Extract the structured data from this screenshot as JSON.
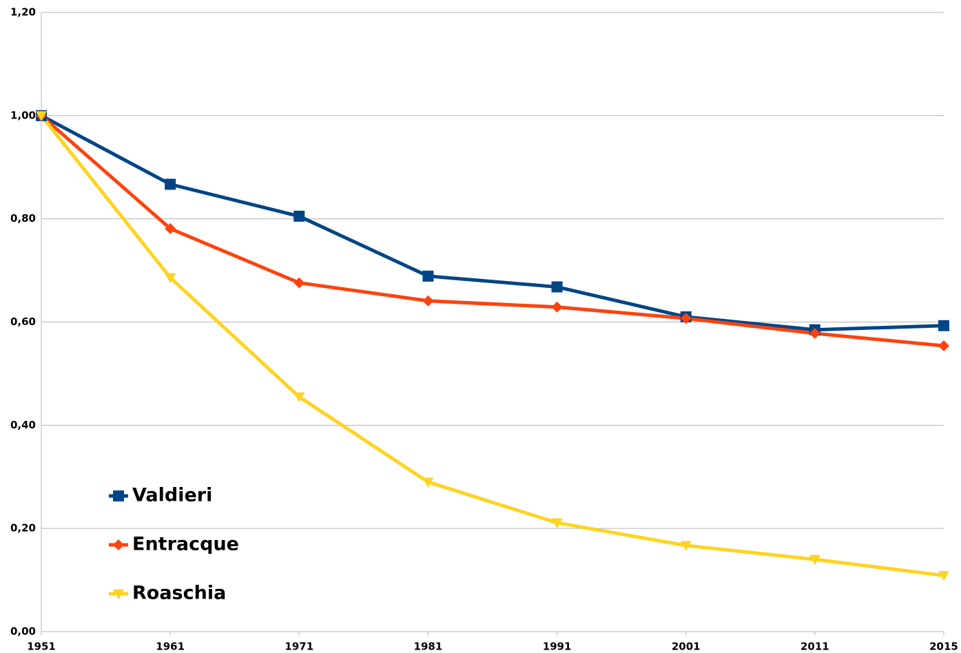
{
  "chart_data": {
    "type": "line",
    "categories": [
      "1951",
      "1961",
      "1971",
      "1981",
      "1991",
      "2001",
      "2011",
      "2015"
    ],
    "series": [
      {
        "name": "Valdieri",
        "color": "#004586",
        "marker": "square",
        "values": [
          1.0,
          0.867,
          0.805,
          0.689,
          0.668,
          0.61,
          0.585,
          0.593
        ]
      },
      {
        "name": "Entracque",
        "color": "#ff420e",
        "marker": "diamond",
        "values": [
          1.0,
          0.781,
          0.676,
          0.641,
          0.629,
          0.607,
          0.578,
          0.554
        ]
      },
      {
        "name": "Roaschia",
        "color": "#ffd320",
        "marker": "triangle-down",
        "values": [
          1.0,
          0.686,
          0.455,
          0.29,
          0.211,
          0.167,
          0.14,
          0.109
        ]
      }
    ],
    "ylim": [
      0,
      1.2
    ],
    "yticks": [
      {
        "value": 0,
        "label": "0,00"
      },
      {
        "value": 0.2,
        "label": "0,20"
      },
      {
        "value": 0.4,
        "label": "0,40"
      },
      {
        "value": 0.6,
        "label": "0,60"
      },
      {
        "value": 0.8,
        "label": "0,80"
      },
      {
        "value": 1.0,
        "label": "1,00"
      },
      {
        "value": 1.2,
        "label": "1,20"
      }
    ],
    "grid": true,
    "legend": "lower-left"
  }
}
